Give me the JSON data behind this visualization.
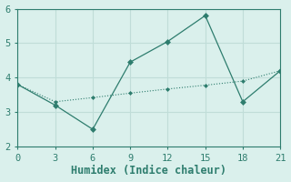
{
  "line1_x": [
    0,
    3,
    6,
    9,
    12,
    15,
    18,
    21
  ],
  "line1_y": [
    3.8,
    3.2,
    2.5,
    4.45,
    5.05,
    5.8,
    3.3,
    4.2
  ],
  "line2_x": [
    0,
    3,
    6,
    9,
    12,
    15,
    18,
    21
  ],
  "line2_y": [
    3.8,
    3.3,
    3.42,
    3.55,
    3.67,
    3.78,
    3.9,
    4.2
  ],
  "line_color": "#2e7d6e",
  "bg_color": "#daf0ec",
  "grid_color": "#c0ddd8",
  "spine_color": "#2e7d6e",
  "xlabel": "Humidex (Indice chaleur)",
  "xlim": [
    0,
    21
  ],
  "ylim": [
    2,
    6
  ],
  "xticks": [
    0,
    3,
    6,
    9,
    12,
    15,
    18,
    21
  ],
  "yticks": [
    2,
    3,
    4,
    5,
    6
  ],
  "tick_fontsize": 7.5,
  "xlabel_fontsize": 8.5
}
